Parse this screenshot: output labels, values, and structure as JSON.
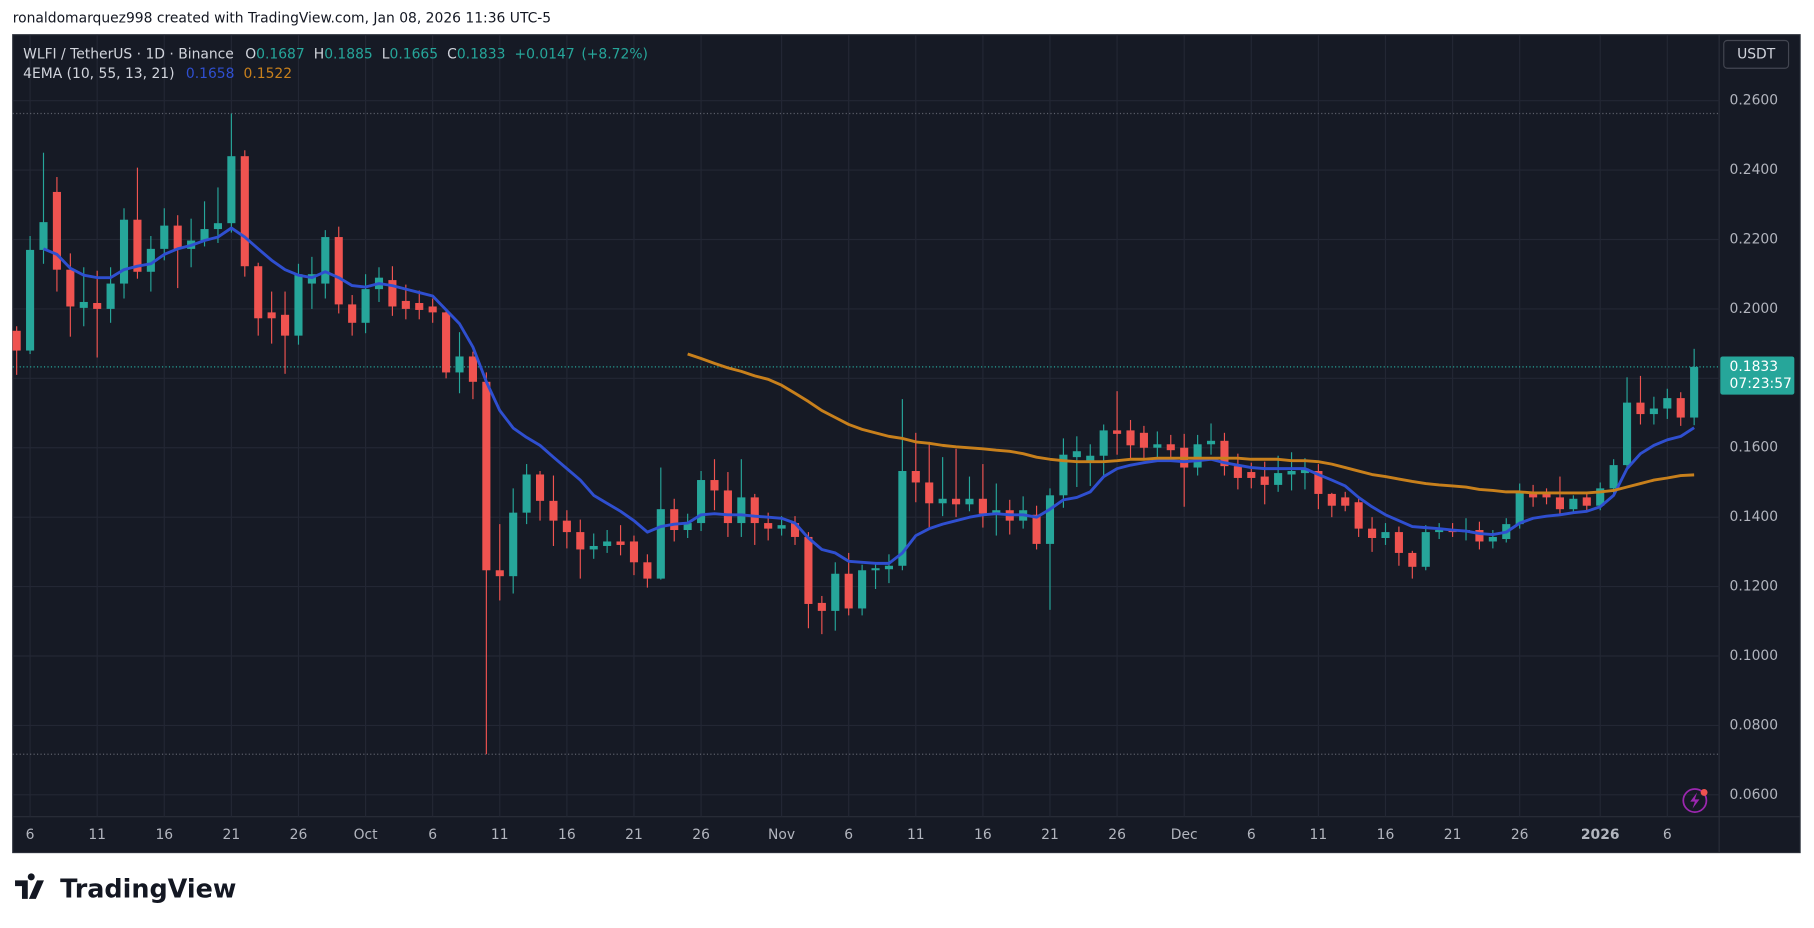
{
  "chart_data": {
    "type": "candlestick",
    "attribution": "ronaldomarquez998 created with TradingView.com, Jan 08, 2026 11:36 UTC-5",
    "symbol": "WLFI / TetherUS · 1D · Binance",
    "ohlc_labels": [
      "O",
      "H",
      "L",
      "C"
    ],
    "change": {
      "value": 0.0147,
      "label": "+0.0147"
    },
    "change_pct": {
      "value": 8.72,
      "label": "(+8.72%)"
    },
    "indicator": "4EMA (10, 55, 13, 21)",
    "currency": "USDT",
    "countdown": "07:23:57",
    "logo": "TradingView",
    "up_color": "#26a69a",
    "down_color": "#ef5350",
    "grid": true,
    "ylim": [
      0.0537,
      0.279
    ],
    "yticks": [
      {
        "value": 0.06,
        "label": "0.0600"
      },
      {
        "value": 0.08,
        "label": "0.0800"
      },
      {
        "value": 0.1,
        "label": "0.1000"
      },
      {
        "value": 0.12,
        "label": "0.1200"
      },
      {
        "value": 0.14,
        "label": "0.1400"
      },
      {
        "value": 0.16,
        "label": "0.1600"
      },
      {
        "value": 0.18,
        "label": "0.1800"
      },
      {
        "value": 0.2,
        "label": "0.2000"
      },
      {
        "value": 0.22,
        "label": "0.2200"
      },
      {
        "value": 0.24,
        "label": "0.2400"
      },
      {
        "value": 0.26,
        "label": "0.2600"
      }
    ],
    "xticks": [
      {
        "value": 1,
        "label": "6"
      },
      {
        "value": 6,
        "label": "11"
      },
      {
        "value": 11,
        "label": "16"
      },
      {
        "value": 16,
        "label": "21"
      },
      {
        "value": 21,
        "label": "26"
      },
      {
        "value": 26,
        "label": "Oct"
      },
      {
        "value": 31,
        "label": "6"
      },
      {
        "value": 36,
        "label": "11"
      },
      {
        "value": 41,
        "label": "16"
      },
      {
        "value": 46,
        "label": "21"
      },
      {
        "value": 51,
        "label": "26"
      },
      {
        "value": 57,
        "label": "Nov"
      },
      {
        "value": 62,
        "label": "6"
      },
      {
        "value": 67,
        "label": "11"
      },
      {
        "value": 72,
        "label": "16"
      },
      {
        "value": 77,
        "label": "21"
      },
      {
        "value": 82,
        "label": "26"
      },
      {
        "value": 87,
        "label": "Dec"
      },
      {
        "value": 92,
        "label": "6"
      },
      {
        "value": 97,
        "label": "11"
      },
      {
        "value": 102,
        "label": "16"
      },
      {
        "value": 107,
        "label": "21"
      },
      {
        "value": 112,
        "label": "26"
      },
      {
        "value": 118,
        "label": "2026"
      },
      {
        "value": 123,
        "label": "6"
      }
    ],
    "open": [
      0.1937,
      0.188,
      0.217,
      0.2337,
      0.2113,
      0.2003,
      0.2017,
      0.2,
      0.2073,
      0.2257,
      0.2107,
      0.2173,
      0.224,
      0.2173,
      0.2197,
      0.223,
      0.2247,
      0.244,
      0.2123,
      0.199,
      0.1983,
      0.1923,
      0.2073,
      0.2073,
      0.2207,
      0.2013,
      0.196,
      0.2057,
      0.2083,
      0.2023,
      0.2017,
      0.2007,
      0.199,
      0.1817,
      0.1863,
      0.179,
      0.1247,
      0.123,
      0.1413,
      0.1523,
      0.1447,
      0.139,
      0.1357,
      0.1307,
      0.1317,
      0.133,
      0.133,
      0.127,
      0.1223,
      0.1423,
      0.1363,
      0.1383,
      0.1507,
      0.1477,
      0.1383,
      0.1457,
      0.1383,
      0.1367,
      0.1383,
      0.1343,
      0.1153,
      0.113,
      0.1237,
      0.1137,
      0.1247,
      0.125,
      0.126,
      0.1533,
      0.15,
      0.144,
      0.1453,
      0.1437,
      0.1453,
      0.141,
      0.142,
      0.139,
      0.1407,
      0.1323,
      0.1463,
      0.1573,
      0.1563,
      0.1577,
      0.165,
      0.165,
      0.1643,
      0.16,
      0.161,
      0.16,
      0.1543,
      0.161,
      0.162,
      0.1547,
      0.153,
      0.1517,
      0.1493,
      0.1523,
      0.1527,
      0.1533,
      0.1467,
      0.1457,
      0.1443,
      0.1367,
      0.134,
      0.1357,
      0.1297,
      0.1257,
      0.1357,
      0.1363,
      0.1357,
      0.1363,
      0.133,
      0.1337,
      0.138,
      0.147,
      0.1467,
      0.1457,
      0.1423,
      0.1457,
      0.1433,
      0.1483,
      0.155,
      0.173,
      0.1697,
      0.1713,
      0.1743,
      0.1687
    ],
    "high": [
      0.195,
      0.221,
      0.245,
      0.238,
      0.216,
      0.212,
      0.211,
      0.212,
      0.229,
      0.2407,
      0.221,
      0.229,
      0.227,
      0.226,
      0.231,
      0.235,
      0.2563,
      0.2457,
      0.2133,
      0.205,
      0.205,
      0.213,
      0.215,
      0.2227,
      0.2237,
      0.204,
      0.21,
      0.212,
      0.2123,
      0.207,
      0.2053,
      0.203,
      0.2,
      0.1933,
      0.1877,
      0.1817,
      0.138,
      0.1483,
      0.1553,
      0.1533,
      0.152,
      0.142,
      0.1393,
      0.1353,
      0.1363,
      0.1377,
      0.1347,
      0.1293,
      0.1543,
      0.1453,
      0.141,
      0.1533,
      0.1567,
      0.153,
      0.1567,
      0.1467,
      0.1413,
      0.1403,
      0.1403,
      0.1357,
      0.1173,
      0.127,
      0.1297,
      0.1263,
      0.127,
      0.1293,
      0.174,
      0.1643,
      0.1617,
      0.1573,
      0.1597,
      0.1517,
      0.1553,
      0.1497,
      0.145,
      0.146,
      0.1433,
      0.1483,
      0.1627,
      0.1633,
      0.161,
      0.1667,
      0.1763,
      0.168,
      0.1663,
      0.1647,
      0.1637,
      0.164,
      0.1637,
      0.167,
      0.1643,
      0.1583,
      0.1557,
      0.156,
      0.1577,
      0.1587,
      0.157,
      0.1553,
      0.147,
      0.1473,
      0.1453,
      0.14,
      0.1383,
      0.1373,
      0.1303,
      0.1377,
      0.1383,
      0.1383,
      0.1397,
      0.1387,
      0.1363,
      0.1397,
      0.1497,
      0.1493,
      0.1483,
      0.1517,
      0.1463,
      0.1473,
      0.15,
      0.1567,
      0.1803,
      0.1807,
      0.1747,
      0.177,
      0.176,
      0.1885
    ],
    "low": [
      0.181,
      0.187,
      0.213,
      0.205,
      0.192,
      0.195,
      0.186,
      0.196,
      0.203,
      0.2087,
      0.205,
      0.214,
      0.206,
      0.212,
      0.218,
      0.219,
      0.222,
      0.2093,
      0.1923,
      0.19,
      0.1813,
      0.1897,
      0.2,
      0.203,
      0.1987,
      0.1923,
      0.193,
      0.202,
      0.198,
      0.197,
      0.197,
      0.196,
      0.18,
      0.1757,
      0.174,
      0.0717,
      0.116,
      0.118,
      0.138,
      0.139,
      0.1317,
      0.131,
      0.1223,
      0.128,
      0.1297,
      0.129,
      0.1233,
      0.1197,
      0.122,
      0.133,
      0.134,
      0.136,
      0.142,
      0.1343,
      0.1343,
      0.132,
      0.1333,
      0.1347,
      0.132,
      0.108,
      0.1063,
      0.1073,
      0.1117,
      0.1117,
      0.1193,
      0.121,
      0.1247,
      0.1443,
      0.1367,
      0.1403,
      0.14,
      0.1417,
      0.137,
      0.1347,
      0.135,
      0.1367,
      0.1307,
      0.1133,
      0.1427,
      0.1487,
      0.149,
      0.152,
      0.158,
      0.1567,
      0.1567,
      0.157,
      0.156,
      0.143,
      0.152,
      0.158,
      0.152,
      0.148,
      0.1483,
      0.1437,
      0.1473,
      0.1477,
      0.148,
      0.1423,
      0.14,
      0.1417,
      0.1343,
      0.13,
      0.132,
      0.126,
      0.1223,
      0.1247,
      0.1337,
      0.1343,
      0.1333,
      0.1307,
      0.131,
      0.1327,
      0.1367,
      0.143,
      0.1437,
      0.1407,
      0.1413,
      0.142,
      0.142,
      0.1463,
      0.1537,
      0.1667,
      0.1667,
      0.1683,
      0.1663,
      0.1665
    ],
    "close": [
      0.188,
      0.217,
      0.225,
      0.2113,
      0.2007,
      0.202,
      0.2,
      0.2073,
      0.2257,
      0.2107,
      0.2173,
      0.224,
      0.2173,
      0.2197,
      0.223,
      0.2247,
      0.244,
      0.2123,
      0.1973,
      0.1973,
      0.1923,
      0.21,
      0.21,
      0.2207,
      0.2013,
      0.196,
      0.2057,
      0.209,
      0.2007,
      0.2,
      0.1997,
      0.199,
      0.1817,
      0.1863,
      0.179,
      0.1247,
      0.123,
      0.1413,
      0.1523,
      0.1447,
      0.139,
      0.1357,
      0.1307,
      0.1317,
      0.133,
      0.132,
      0.127,
      0.1223,
      0.1423,
      0.1363,
      0.1383,
      0.1507,
      0.1477,
      0.1383,
      0.1457,
      0.1383,
      0.1367,
      0.1377,
      0.1343,
      0.115,
      0.113,
      0.1237,
      0.1137,
      0.1247,
      0.1253,
      0.126,
      0.1533,
      0.15,
      0.144,
      0.1453,
      0.1437,
      0.1453,
      0.141,
      0.142,
      0.139,
      0.142,
      0.1323,
      0.1463,
      0.158,
      0.159,
      0.1577,
      0.165,
      0.164,
      0.1607,
      0.16,
      0.161,
      0.1593,
      0.1543,
      0.161,
      0.162,
      0.1547,
      0.1513,
      0.1513,
      0.1493,
      0.1527,
      0.1533,
      0.154,
      0.1467,
      0.1433,
      0.1433,
      0.1367,
      0.134,
      0.1357,
      0.1297,
      0.1257,
      0.1357,
      0.1363,
      0.1357,
      0.1363,
      0.133,
      0.1343,
      0.138,
      0.147,
      0.1457,
      0.1457,
      0.1423,
      0.1453,
      0.1433,
      0.1483,
      0.155,
      0.173,
      0.1697,
      0.1713,
      0.1743,
      0.1687,
      0.1833
    ],
    "series": [
      {
        "color": "#2f4fd0",
        "values": [
          null,
          null,
          0.2173,
          0.2157,
          0.2117,
          0.2097,
          0.209,
          0.209,
          0.2113,
          0.2123,
          0.213,
          0.2157,
          0.2173,
          0.2183,
          0.2197,
          0.2207,
          0.2233,
          0.2207,
          0.2173,
          0.214,
          0.2113,
          0.2097,
          0.209,
          0.2107,
          0.209,
          0.2067,
          0.2063,
          0.2073,
          0.2067,
          0.2057,
          0.2047,
          0.2037,
          0.1997,
          0.1957,
          0.189,
          0.179,
          0.1707,
          0.1657,
          0.163,
          0.1607,
          0.1573,
          0.154,
          0.1507,
          0.1463,
          0.144,
          0.1417,
          0.139,
          0.1357,
          0.1373,
          0.138,
          0.1383,
          0.1407,
          0.141,
          0.1407,
          0.1407,
          0.1403,
          0.14,
          0.1397,
          0.1383,
          0.134,
          0.1307,
          0.1297,
          0.1273,
          0.127,
          0.1267,
          0.1267,
          0.1297,
          0.1347,
          0.1367,
          0.138,
          0.139,
          0.14,
          0.1407,
          0.141,
          0.1407,
          0.1407,
          0.14,
          0.1423,
          0.145,
          0.1457,
          0.1473,
          0.1517,
          0.154,
          0.155,
          0.1557,
          0.1563,
          0.1563,
          0.156,
          0.1563,
          0.1567,
          0.1557,
          0.155,
          0.1543,
          0.154,
          0.154,
          0.154,
          0.154,
          0.1523,
          0.1507,
          0.149,
          0.1457,
          0.143,
          0.1407,
          0.139,
          0.1373,
          0.137,
          0.1367,
          0.1363,
          0.136,
          0.1353,
          0.135,
          0.1357,
          0.1383,
          0.1397,
          0.1403,
          0.1407,
          0.1413,
          0.1417,
          0.143,
          0.1463,
          0.154,
          0.1583,
          0.1607,
          0.1623,
          0.1633,
          0.1658
        ]
      },
      {
        "color": "#c8801c",
        "values": [
          null,
          null,
          null,
          null,
          null,
          null,
          null,
          null,
          null,
          null,
          null,
          null,
          null,
          null,
          null,
          null,
          null,
          null,
          null,
          null,
          null,
          null,
          null,
          null,
          null,
          null,
          null,
          null,
          null,
          null,
          null,
          null,
          null,
          null,
          null,
          null,
          null,
          null,
          null,
          null,
          null,
          null,
          null,
          null,
          null,
          null,
          null,
          null,
          null,
          null,
          0.187,
          0.1857,
          0.1843,
          0.183,
          0.182,
          0.1807,
          0.1797,
          0.178,
          0.1757,
          0.1733,
          0.1707,
          0.1687,
          0.1667,
          0.1653,
          0.1643,
          0.1633,
          0.1627,
          0.1617,
          0.1613,
          0.1607,
          0.1603,
          0.16,
          0.1597,
          0.1593,
          0.159,
          0.1583,
          0.1573,
          0.1567,
          0.1563,
          0.156,
          0.156,
          0.156,
          0.1563,
          0.1567,
          0.1567,
          0.157,
          0.157,
          0.157,
          0.157,
          0.157,
          0.157,
          0.157,
          0.1567,
          0.1567,
          0.1567,
          0.1563,
          0.1563,
          0.156,
          0.1553,
          0.1543,
          0.1533,
          0.1523,
          0.1517,
          0.151,
          0.1503,
          0.1497,
          0.1493,
          0.149,
          0.1487,
          0.148,
          0.1477,
          0.1473,
          0.1473,
          0.147,
          0.147,
          0.147,
          0.147,
          0.147,
          0.1473,
          0.1477,
          0.1487,
          0.1497,
          0.1507,
          0.1513,
          0.152,
          0.1522
        ]
      }
    ]
  }
}
